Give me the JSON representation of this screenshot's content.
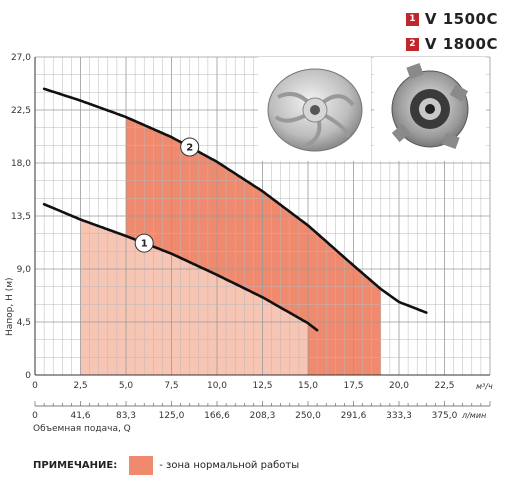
{
  "legend": [
    {
      "num": "1",
      "model": "V 1500C",
      "color": "#c0272d"
    },
    {
      "num": "2",
      "model": "V 1800C",
      "color": "#c0272d"
    }
  ],
  "note": {
    "title": "ПРИМЕЧАНИЕ:",
    "text": "- зона нормальной работы",
    "color": "#ef8a6e"
  },
  "photos": [
    {
      "name": "impeller-front-photo"
    },
    {
      "name": "impeller-back-photo"
    }
  ],
  "chart_data": {
    "type": "line",
    "ylabel": "Напор, H (м)",
    "xlabel": "Объемная подача, Q",
    "x_unit": "м³/ч",
    "x2_unit": "л/мин",
    "xlim": [
      0,
      25
    ],
    "ylim": [
      0,
      27
    ],
    "x_ticks": [
      "0",
      "2,5",
      "5,0",
      "7,5",
      "10,0",
      "12,5",
      "15,0",
      "17,5",
      "20,0",
      "22,5"
    ],
    "x2_ticks": [
      "0",
      "41,6",
      "83,3",
      "125,0",
      "166,6",
      "208,3",
      "250,0",
      "291,6",
      "333,3",
      "375,0"
    ],
    "y_ticks": [
      "0",
      "4,5",
      "9,0",
      "13,5",
      "18,0",
      "22,5",
      "27,0"
    ],
    "grid": true,
    "series": [
      {
        "name": "1",
        "color": "#111111",
        "x": [
          0.5,
          2.5,
          5.0,
          7.5,
          10.0,
          12.5,
          15.0,
          15.5
        ],
        "y": [
          14.5,
          13.2,
          11.8,
          10.3,
          8.5,
          6.6,
          4.4,
          3.8
        ]
      },
      {
        "name": "2",
        "color": "#111111",
        "x": [
          0.5,
          2.5,
          5.0,
          7.5,
          10.0,
          12.5,
          15.0,
          17.5,
          19.0,
          20.0,
          21.5
        ],
        "y": [
          24.3,
          23.3,
          21.9,
          20.2,
          18.1,
          15.6,
          12.7,
          9.3,
          7.3,
          6.2,
          5.3
        ]
      }
    ],
    "zones": [
      {
        "series": "1",
        "x_from": 2.5,
        "x_to": 15.0,
        "color": "#f7c5b4"
      },
      {
        "series": "2",
        "x_from": 5.0,
        "x_to": 19.0,
        "color": "#ef8a6e"
      }
    ]
  }
}
